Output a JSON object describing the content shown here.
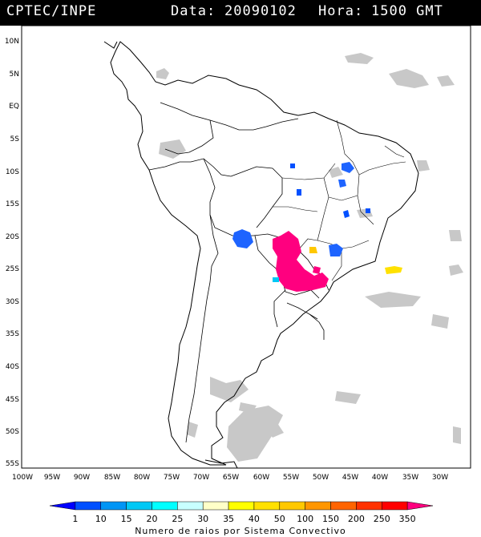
{
  "header": {
    "source": "CPTEC/INPE",
    "date_label": "Data:",
    "date_value": "20090102",
    "hour_label": "Hora:",
    "hour_value": "1500 GMT"
  },
  "axes": {
    "lat_labels": [
      "10N",
      "5N",
      "EQ",
      "5S",
      "10S",
      "15S",
      "20S",
      "25S",
      "30S",
      "35S",
      "40S",
      "45S",
      "50S",
      "55S"
    ],
    "lon_labels": [
      "100W",
      "95W",
      "90W",
      "85W",
      "80W",
      "75W",
      "70W",
      "65W",
      "60W",
      "55W",
      "50W",
      "45W",
      "40W",
      "35W",
      "30W"
    ]
  },
  "legend": {
    "title": "Numero de raios por Sistema Convectivo",
    "ticks": [
      "1",
      "10",
      "15",
      "20",
      "25",
      "30",
      "35",
      "40",
      "50",
      "100",
      "150",
      "200",
      "250",
      "350"
    ],
    "colors": [
      "#0000ff",
      "#0050ff",
      "#0095f5",
      "#00c8f5",
      "#00ffff",
      "#c8ffff",
      "#ffffc8",
      "#ffff00",
      "#ffe100",
      "#ffc800",
      "#ff9600",
      "#ff6400",
      "#ff3200",
      "#ff0000",
      "#ff007f"
    ]
  },
  "colors": {
    "land_outline": "#000000",
    "cloud": "#c0c0c0"
  }
}
